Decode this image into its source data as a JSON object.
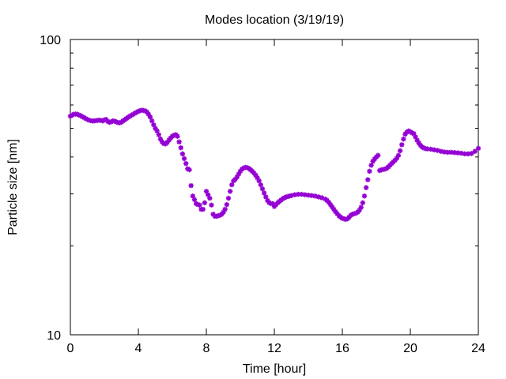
{
  "chart_data": {
    "type": "scatter",
    "title": "Modes location (3/19/19)",
    "xlabel": "Time [hour]",
    "ylabel": "Particle size [nm]",
    "xlim": [
      0,
      24
    ],
    "ylim": [
      10,
      100
    ],
    "yscale": "log",
    "x_ticks": [
      "0",
      "4",
      "8",
      "12",
      "16",
      "20",
      "24"
    ],
    "y_ticks": [
      "10",
      "100"
    ],
    "grid": false,
    "legend": "none",
    "marker": "asterisk",
    "series": [
      {
        "color": "#9400d3",
        "points": [
          [
            0.0,
            55.0
          ],
          [
            0.1,
            55.4
          ],
          [
            0.2,
            55.8
          ],
          [
            0.3,
            55.9
          ],
          [
            0.4,
            55.8
          ],
          [
            0.5,
            55.5
          ],
          [
            0.6,
            55.2
          ],
          [
            0.7,
            54.8
          ],
          [
            0.8,
            54.4
          ],
          [
            0.9,
            54.0
          ],
          [
            1.0,
            53.6
          ],
          [
            1.1,
            53.3
          ],
          [
            1.2,
            53.1
          ],
          [
            1.3,
            53.0
          ],
          [
            1.4,
            53.0
          ],
          [
            1.5,
            53.1
          ],
          [
            1.6,
            53.2
          ],
          [
            1.7,
            53.3
          ],
          [
            1.8,
            53.2
          ],
          [
            1.9,
            53.0
          ],
          [
            2.0,
            53.4
          ],
          [
            2.1,
            53.6
          ],
          [
            2.2,
            52.8
          ],
          [
            2.3,
            52.4
          ],
          [
            2.4,
            52.6
          ],
          [
            2.5,
            53.0
          ],
          [
            2.6,
            52.9
          ],
          [
            2.7,
            52.6
          ],
          [
            2.8,
            52.3
          ],
          [
            2.9,
            52.2
          ],
          [
            3.0,
            52.5
          ],
          [
            3.1,
            53.0
          ],
          [
            3.2,
            53.5
          ],
          [
            3.3,
            54.0
          ],
          [
            3.4,
            54.5
          ],
          [
            3.5,
            55.0
          ],
          [
            3.6,
            55.4
          ],
          [
            3.7,
            55.8
          ],
          [
            3.8,
            56.3
          ],
          [
            3.9,
            56.7
          ],
          [
            4.0,
            57.1
          ],
          [
            4.1,
            57.4
          ],
          [
            4.2,
            57.6
          ],
          [
            4.3,
            57.5
          ],
          [
            4.4,
            57.3
          ],
          [
            4.5,
            56.8
          ],
          [
            4.6,
            55.8
          ],
          [
            4.7,
            54.6
          ],
          [
            4.8,
            53.0
          ],
          [
            4.9,
            51.4
          ],
          [
            5.0,
            50.0
          ],
          [
            5.1,
            49.0
          ],
          [
            5.2,
            47.6
          ],
          [
            5.3,
            46.0
          ],
          [
            5.4,
            45.0
          ],
          [
            5.5,
            44.4
          ],
          [
            5.6,
            44.3
          ],
          [
            5.7,
            44.8
          ],
          [
            5.8,
            45.6
          ],
          [
            5.9,
            46.4
          ],
          [
            6.0,
            47.0
          ],
          [
            6.1,
            47.4
          ],
          [
            6.2,
            47.6
          ],
          [
            6.3,
            47.0
          ],
          [
            6.4,
            45.0
          ],
          [
            6.5,
            43.0
          ],
          [
            6.6,
            41.0
          ],
          [
            6.7,
            39.5
          ],
          [
            6.8,
            38.0
          ],
          [
            6.9,
            36.5
          ],
          [
            7.0,
            36.2
          ],
          [
            7.1,
            32.0
          ],
          [
            7.2,
            29.5
          ],
          [
            7.3,
            28.7
          ],
          [
            7.4,
            27.8
          ],
          [
            7.5,
            27.6
          ],
          [
            7.6,
            27.5
          ],
          [
            7.7,
            26.6
          ],
          [
            7.8,
            26.6
          ],
          [
            7.9,
            28.0
          ],
          [
            8.0,
            30.6
          ],
          [
            8.1,
            29.8
          ],
          [
            8.2,
            29.0
          ],
          [
            8.3,
            27.5
          ],
          [
            8.4,
            25.6
          ],
          [
            8.5,
            25.2
          ],
          [
            8.6,
            25.2
          ],
          [
            8.7,
            25.3
          ],
          [
            8.8,
            25.4
          ],
          [
            8.9,
            25.6
          ],
          [
            9.0,
            26.0
          ],
          [
            9.1,
            26.6
          ],
          [
            9.2,
            27.6
          ],
          [
            9.3,
            29.0
          ],
          [
            9.4,
            30.6
          ],
          [
            9.5,
            32.2
          ],
          [
            9.6,
            33.2
          ],
          [
            9.7,
            33.6
          ],
          [
            9.8,
            34.2
          ],
          [
            9.9,
            35.0
          ],
          [
            10.0,
            35.8
          ],
          [
            10.1,
            36.4
          ],
          [
            10.2,
            36.7
          ],
          [
            10.3,
            36.9
          ],
          [
            10.4,
            36.8
          ],
          [
            10.5,
            36.6
          ],
          [
            10.6,
            36.2
          ],
          [
            10.7,
            35.8
          ],
          [
            10.8,
            35.3
          ],
          [
            10.9,
            34.7
          ],
          [
            11.0,
            34.0
          ],
          [
            11.1,
            33.2
          ],
          [
            11.2,
            32.2
          ],
          [
            11.3,
            31.2
          ],
          [
            11.4,
            30.2
          ],
          [
            11.5,
            29.3
          ],
          [
            11.6,
            28.5
          ],
          [
            11.7,
            28.0
          ],
          [
            11.8,
            27.8
          ],
          [
            11.9,
            27.8
          ],
          [
            12.0,
            27.2
          ],
          [
            12.1,
            27.6
          ],
          [
            12.2,
            28.0
          ],
          [
            12.3,
            28.3
          ],
          [
            12.4,
            28.6
          ],
          [
            12.5,
            28.9
          ],
          [
            12.6,
            29.1
          ],
          [
            12.7,
            29.3
          ],
          [
            12.8,
            29.4
          ],
          [
            12.9,
            29.5
          ],
          [
            13.0,
            29.6
          ],
          [
            13.2,
            29.8
          ],
          [
            13.4,
            29.9
          ],
          [
            13.6,
            29.9
          ],
          [
            13.8,
            29.8
          ],
          [
            14.0,
            29.7
          ],
          [
            14.2,
            29.6
          ],
          [
            14.4,
            29.5
          ],
          [
            14.6,
            29.3
          ],
          [
            14.8,
            29.1
          ],
          [
            15.0,
            28.8
          ],
          [
            15.1,
            28.5
          ],
          [
            15.2,
            28.1
          ],
          [
            15.3,
            27.6
          ],
          [
            15.4,
            27.1
          ],
          [
            15.5,
            26.6
          ],
          [
            15.6,
            26.1
          ],
          [
            15.7,
            25.7
          ],
          [
            15.8,
            25.3
          ],
          [
            15.9,
            25.0
          ],
          [
            16.0,
            24.8
          ],
          [
            16.1,
            24.7
          ],
          [
            16.2,
            24.6
          ],
          [
            16.3,
            24.7
          ],
          [
            16.4,
            25.0
          ],
          [
            16.5,
            25.4
          ],
          [
            16.6,
            25.6
          ],
          [
            16.7,
            25.7
          ],
          [
            16.8,
            25.8
          ],
          [
            16.9,
            26.0
          ],
          [
            17.0,
            26.4
          ],
          [
            17.1,
            27.0
          ],
          [
            17.2,
            28.0
          ],
          [
            17.3,
            29.5
          ],
          [
            17.4,
            31.5
          ],
          [
            17.5,
            33.5
          ],
          [
            17.6,
            35.8
          ],
          [
            17.7,
            37.5
          ],
          [
            17.8,
            38.7
          ],
          [
            17.9,
            39.4
          ],
          [
            18.0,
            40.0
          ],
          [
            18.1,
            40.5
          ],
          [
            18.2,
            36.0
          ],
          [
            18.3,
            36.2
          ],
          [
            18.4,
            36.3
          ],
          [
            18.5,
            36.4
          ],
          [
            18.6,
            36.6
          ],
          [
            18.7,
            37.0
          ],
          [
            18.8,
            37.5
          ],
          [
            18.9,
            38.0
          ],
          [
            19.0,
            38.5
          ],
          [
            19.1,
            39.0
          ],
          [
            19.2,
            39.6
          ],
          [
            19.3,
            40.5
          ],
          [
            19.4,
            42.0
          ],
          [
            19.5,
            44.0
          ],
          [
            19.6,
            46.0
          ],
          [
            19.7,
            47.8
          ],
          [
            19.8,
            48.6
          ],
          [
            19.9,
            49.0
          ],
          [
            20.0,
            48.7
          ],
          [
            20.1,
            48.3
          ],
          [
            20.2,
            48.0
          ],
          [
            20.3,
            46.8
          ],
          [
            20.4,
            45.6
          ],
          [
            20.5,
            44.6
          ],
          [
            20.6,
            43.8
          ],
          [
            20.7,
            43.2
          ],
          [
            20.8,
            42.9
          ],
          [
            20.9,
            42.7
          ],
          [
            21.0,
            42.6
          ],
          [
            21.2,
            42.5
          ],
          [
            21.4,
            42.3
          ],
          [
            21.6,
            42.1
          ],
          [
            21.8,
            41.8
          ],
          [
            22.0,
            41.6
          ],
          [
            22.2,
            41.5
          ],
          [
            22.4,
            41.5
          ],
          [
            22.6,
            41.4
          ],
          [
            22.8,
            41.3
          ],
          [
            23.0,
            41.2
          ],
          [
            23.2,
            41.0
          ],
          [
            23.4,
            41.0
          ],
          [
            23.6,
            41.1
          ],
          [
            23.8,
            41.8
          ],
          [
            24.0,
            42.8
          ]
        ]
      }
    ]
  }
}
